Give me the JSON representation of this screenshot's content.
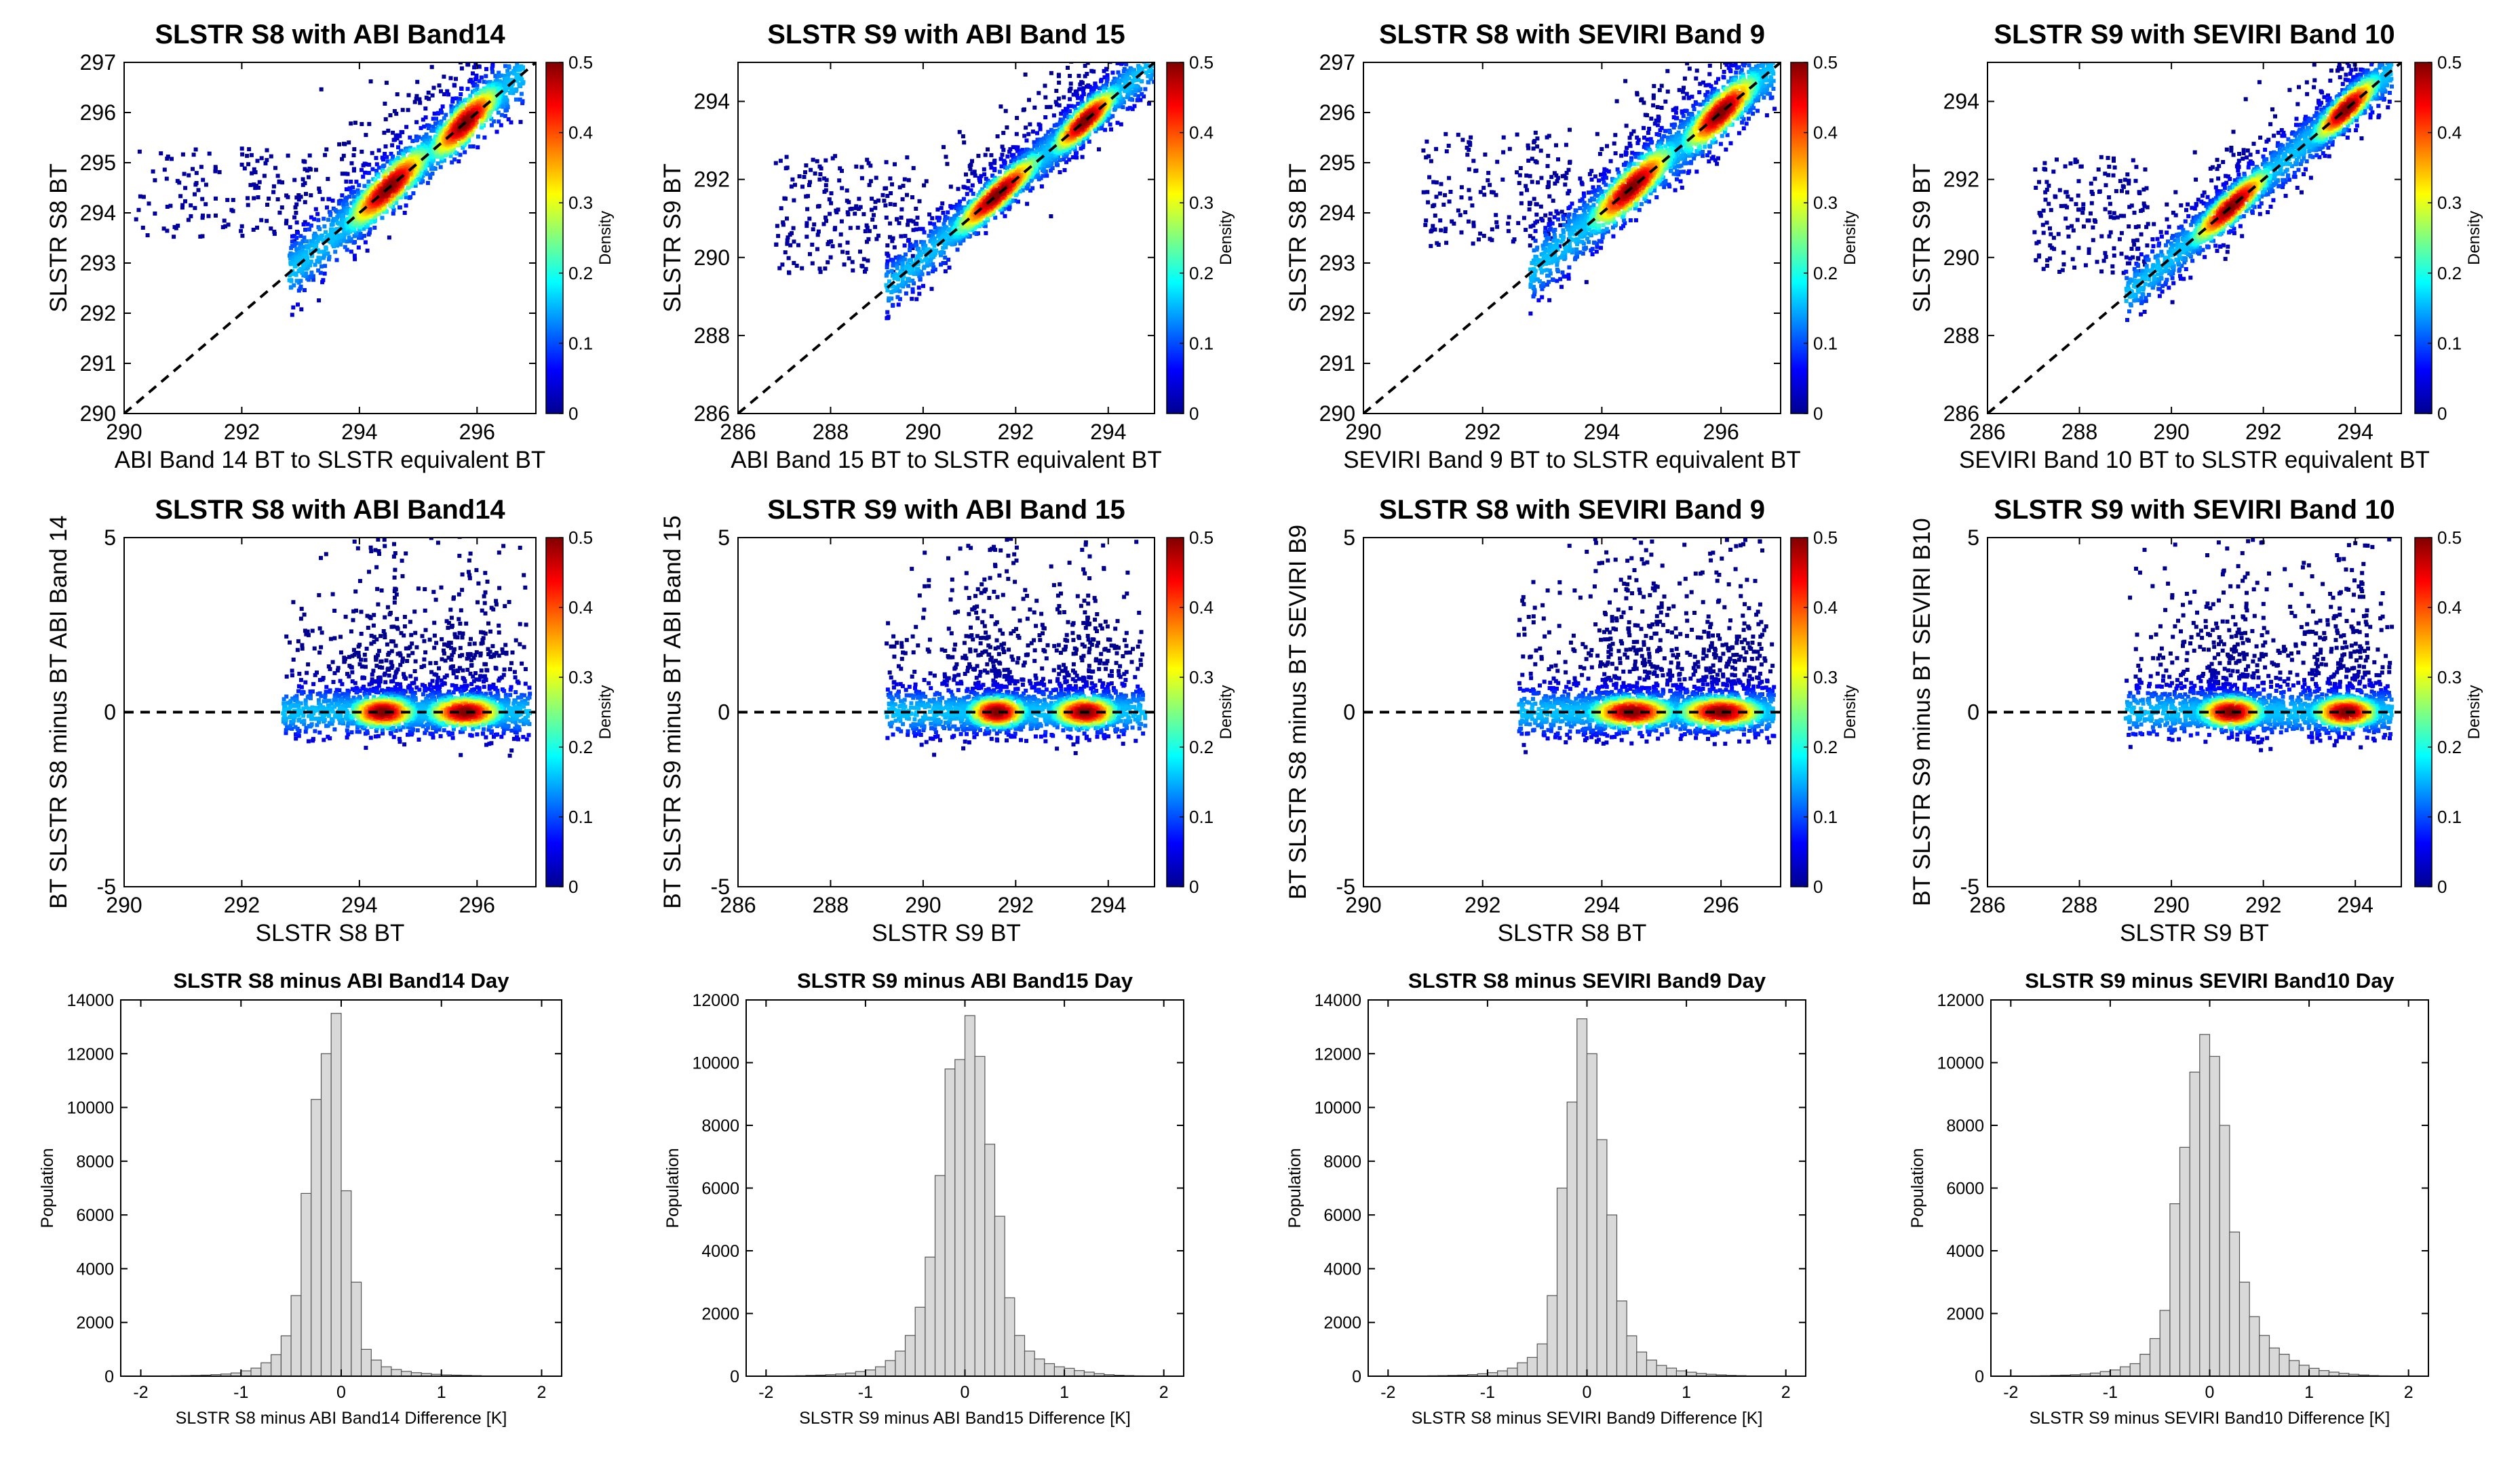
{
  "figure": {
    "colormap": [
      "#00008f",
      "#0000ff",
      "#0080ff",
      "#00ffff",
      "#80ff80",
      "#ffff00",
      "#ff8000",
      "#ff0000",
      "#800000"
    ],
    "hist_fill": "#d9d9d9",
    "hist_edge": "#555555",
    "scatter_low_color": "#00008b"
  },
  "chart_data": [
    {
      "type": "scatter",
      "row": 0,
      "col": 0,
      "title": "SLSTR S8 with ABI Band14",
      "xlabel": "ABI Band 14 BT to SLSTR equivalent BT",
      "ylabel": "SLSTR S8 BT",
      "xlim": [
        290,
        297
      ],
      "ylim": [
        290,
        297
      ],
      "xticks": [
        290,
        292,
        294,
        296
      ],
      "yticks": [
        290,
        291,
        292,
        293,
        294,
        295,
        296,
        297
      ],
      "reference_line": "1:1",
      "colorbar": {
        "label": "Density",
        "range": [
          0,
          0.5
        ],
        "ticks": [
          0,
          0.1,
          0.2,
          0.3,
          0.4,
          0.5
        ]
      },
      "point_cloud": {
        "x_range": [
          292.8,
          296.8
        ],
        "density_peaks": [
          [
            294.5,
            294.5
          ],
          [
            295.8,
            295.9
          ]
        ],
        "outliers_x": [
          290,
          293
        ],
        "outliers_y": [
          293.3,
          295.3
        ]
      }
    },
    {
      "type": "scatter",
      "row": 0,
      "col": 1,
      "title": "SLSTR S9 with ABI Band 15",
      "xlabel": "ABI Band 15 BT to SLSTR equivalent BT",
      "ylabel": "SLSTR S9 BT",
      "xlim": [
        286,
        295
      ],
      "ylim": [
        286,
        295
      ],
      "xticks": [
        286,
        288,
        290,
        292,
        294
      ],
      "yticks": [
        286,
        288,
        290,
        292,
        294
      ],
      "reference_line": "1:1",
      "colorbar": {
        "label": "Density",
        "range": [
          0,
          0.5
        ],
        "ticks": [
          0,
          0.1,
          0.2,
          0.3,
          0.4,
          0.5
        ]
      },
      "point_cloud": {
        "x_range": [
          289.2,
          295
        ],
        "density_peaks": [
          [
            291.6,
            291.6
          ],
          [
            293.5,
            293.5
          ]
        ],
        "outliers_x": [
          286,
          289.5
        ],
        "outliers_y": [
          289.5,
          292.5
        ]
      }
    },
    {
      "type": "scatter",
      "row": 0,
      "col": 2,
      "title": "SLSTR S8 with SEVIRI Band 9",
      "xlabel": "SEVIRI Band 9 BT to SLSTR equivalent BT",
      "ylabel": "SLSTR S8 BT",
      "xlim": [
        290,
        297
      ],
      "ylim": [
        290,
        297
      ],
      "xticks": [
        290,
        292,
        294,
        296
      ],
      "yticks": [
        290,
        291,
        292,
        293,
        294,
        295,
        296,
        297
      ],
      "reference_line": "1:1",
      "colorbar": {
        "label": "Density",
        "range": [
          0,
          0.5
        ],
        "ticks": [
          0,
          0.1,
          0.2,
          0.3,
          0.4,
          0.5
        ]
      },
      "point_cloud": {
        "x_range": [
          292.8,
          296.9
        ],
        "density_peaks": [
          [
            294.5,
            294.5
          ],
          [
            296,
            296
          ]
        ],
        "outliers_x": [
          291,
          293.5
        ],
        "outliers_y": [
          293.3,
          295.6
        ]
      }
    },
    {
      "type": "scatter",
      "row": 0,
      "col": 3,
      "title": "SLSTR S9 with SEVIRI Band 10",
      "xlabel": "SEVIRI Band 10 BT to SLSTR equivalent BT",
      "ylabel": "SLSTR S9 BT",
      "xlim": [
        286,
        295
      ],
      "ylim": [
        286,
        295
      ],
      "xticks": [
        286,
        288,
        290,
        292,
        294
      ],
      "yticks": [
        286,
        288,
        290,
        292,
        294
      ],
      "reference_line": "1:1",
      "colorbar": {
        "label": "Density",
        "range": [
          0,
          0.5
        ],
        "ticks": [
          0,
          0.1,
          0.2,
          0.3,
          0.4,
          0.5
        ]
      },
      "point_cloud": {
        "x_range": [
          289,
          294.8
        ],
        "density_peaks": [
          [
            291.3,
            291.4
          ],
          [
            293.8,
            293.8
          ]
        ],
        "outliers_x": [
          287,
          289.5
        ],
        "outliers_y": [
          289.5,
          292.5
        ]
      }
    },
    {
      "type": "scatter",
      "row": 1,
      "col": 0,
      "title": "SLSTR S8 with ABI Band14",
      "xlabel": "SLSTR S8 BT",
      "ylabel": "BT SLSTR S8 minus BT ABI Band 14",
      "xlim": [
        290,
        297
      ],
      "ylim": [
        -5,
        5
      ],
      "xticks": [
        290,
        292,
        294,
        296
      ],
      "yticks": [
        -5,
        0,
        5
      ],
      "reference_line": "y=0",
      "colorbar": {
        "label": "Density",
        "range": [
          0,
          0.5
        ],
        "ticks": [
          0,
          0.1,
          0.2,
          0.3,
          0.4,
          0.5
        ]
      },
      "point_cloud": {
        "x_range": [
          292.7,
          296.9
        ],
        "density_peaks": [
          [
            294.4,
            0.1
          ],
          [
            295.8,
            -0.1
          ]
        ],
        "spread_y": [
          -1.3,
          5
        ]
      }
    },
    {
      "type": "scatter",
      "row": 1,
      "col": 1,
      "title": "SLSTR S9 with ABI Band 15",
      "xlabel": "SLSTR S9 BT",
      "ylabel": "BT SLSTR S9 minus BT ABI Band 15",
      "xlim": [
        286,
        295
      ],
      "ylim": [
        -5,
        5
      ],
      "xticks": [
        286,
        288,
        290,
        292,
        294
      ],
      "yticks": [
        -5,
        0,
        5
      ],
      "reference_line": "y=0",
      "colorbar": {
        "label": "Density",
        "range": [
          0,
          0.5
        ],
        "ticks": [
          0,
          0.1,
          0.2,
          0.3,
          0.4,
          0.5
        ]
      },
      "point_cloud": {
        "x_range": [
          289.2,
          294.8
        ],
        "density_peaks": [
          [
            291.6,
            0.1
          ],
          [
            293.5,
            0
          ]
        ],
        "spread_y": [
          -1.8,
          5
        ]
      }
    },
    {
      "type": "scatter",
      "row": 1,
      "col": 2,
      "title": "SLSTR S8 with SEVIRI Band 9",
      "xlabel": "SLSTR S8 BT",
      "ylabel": "BT SLSTR S8 minus BT SEVIRI B9",
      "xlim": [
        290,
        297
      ],
      "ylim": [
        -5,
        5
      ],
      "xticks": [
        290,
        292,
        294,
        296
      ],
      "yticks": [
        -5,
        0,
        5
      ],
      "reference_line": "y=0",
      "colorbar": {
        "label": "Density",
        "range": [
          0,
          0.5
        ],
        "ticks": [
          0,
          0.1,
          0.2,
          0.3,
          0.4,
          0.5
        ]
      },
      "point_cloud": {
        "x_range": [
          292.6,
          296.9
        ],
        "density_peaks": [
          [
            294.5,
            0.1
          ],
          [
            296,
            0
          ]
        ],
        "spread_y": [
          -1.5,
          5
        ]
      }
    },
    {
      "type": "scatter",
      "row": 1,
      "col": 3,
      "title": "SLSTR S9 with SEVIRI Band 10",
      "xlabel": "SLSTR S9 BT",
      "ylabel": "BT SLSTR S9 minus BT SEVIRI B10",
      "xlim": [
        286,
        295
      ],
      "ylim": [
        -5,
        5
      ],
      "xticks": [
        286,
        288,
        290,
        292,
        294
      ],
      "yticks": [
        -5,
        0,
        5
      ],
      "reference_line": "y=0",
      "colorbar": {
        "label": "Density",
        "range": [
          0,
          0.5
        ],
        "ticks": [
          0,
          0.1,
          0.2,
          0.3,
          0.4,
          0.5
        ]
      },
      "point_cloud": {
        "x_range": [
          289,
          294.8
        ],
        "density_peaks": [
          [
            291.3,
            0.1
          ],
          [
            293.8,
            0.1
          ]
        ],
        "spread_y": [
          -1.5,
          5
        ]
      }
    },
    {
      "type": "bar",
      "subtype": "histogram",
      "row": 2,
      "col": 0,
      "title": "SLSTR S8 minus ABI Band14 Day",
      "xlabel": "SLSTR S8 minus ABI Band14 Difference [K]",
      "ylabel": "Population",
      "xlim": [
        -2.2,
        2.2
      ],
      "ylim": [
        0,
        14000
      ],
      "xticks": [
        -2,
        -1,
        0,
        1,
        2
      ],
      "yticks": [
        0,
        2000,
        4000,
        6000,
        8000,
        10000,
        12000,
        14000
      ],
      "bin_start": -2.1,
      "bin_width": 0.1,
      "values": [
        0,
        0,
        5,
        10,
        15,
        20,
        30,
        40,
        60,
        80,
        120,
        200,
        300,
        500,
        800,
        1500,
        3000,
        6800,
        10300,
        12000,
        13500,
        6900,
        3500,
        1000,
        600,
        350,
        250,
        180,
        130,
        100,
        70,
        50,
        40,
        30,
        20,
        10,
        10,
        5,
        5,
        0,
        0,
        0
      ]
    },
    {
      "type": "bar",
      "subtype": "histogram",
      "row": 2,
      "col": 1,
      "title": "SLSTR S9 minus ABI Band15 Day",
      "xlabel": "SLSTR S9 minus ABI Band15 Difference [K]",
      "ylabel": "Population",
      "xlim": [
        -2.2,
        2.2
      ],
      "ylim": [
        0,
        12000
      ],
      "xticks": [
        -2,
        -1,
        0,
        1,
        2
      ],
      "yticks": [
        0,
        2000,
        4000,
        6000,
        8000,
        10000,
        12000
      ],
      "bin_start": -2.1,
      "bin_width": 0.1,
      "values": [
        0,
        0,
        5,
        10,
        15,
        25,
        35,
        50,
        70,
        100,
        150,
        200,
        300,
        500,
        800,
        1300,
        2200,
        3800,
        6400,
        9800,
        10100,
        11500,
        10200,
        7400,
        5100,
        2500,
        1300,
        800,
        550,
        400,
        300,
        250,
        180,
        130,
        80,
        50,
        30,
        20,
        10,
        5,
        0,
        0
      ]
    },
    {
      "type": "bar",
      "subtype": "histogram",
      "row": 2,
      "col": 2,
      "title": "SLSTR S8 minus SEVIRI Band9 Day",
      "xlabel": "SLSTR S8 minus SEVIRI Band9 Difference [K]",
      "ylabel": "Population",
      "xlim": [
        -2.2,
        2.2
      ],
      "ylim": [
        0,
        14000
      ],
      "xticks": [
        -2,
        -1,
        0,
        1,
        2
      ],
      "yticks": [
        0,
        2000,
        4000,
        6000,
        8000,
        10000,
        12000,
        14000
      ],
      "bin_start": -2.1,
      "bin_width": 0.1,
      "values": [
        0,
        0,
        0,
        5,
        10,
        15,
        20,
        30,
        40,
        60,
        90,
        130,
        200,
        300,
        500,
        700,
        1200,
        3000,
        7000,
        10200,
        13300,
        12000,
        8800,
        6000,
        2800,
        1500,
        900,
        600,
        400,
        300,
        200,
        150,
        100,
        70,
        50,
        30,
        20,
        10,
        5,
        0,
        0,
        0
      ]
    },
    {
      "type": "bar",
      "subtype": "histogram",
      "row": 2,
      "col": 3,
      "title": "SLSTR S9 minus SEVIRI Band10 Day",
      "xlabel": "SLSTR S9 minus SEVIRI Band10 Difference [K]",
      "ylabel": "Population",
      "xlim": [
        -2.2,
        2.2
      ],
      "ylim": [
        0,
        12000
      ],
      "xticks": [
        -2,
        -1,
        0,
        1,
        2
      ],
      "yticks": [
        0,
        2000,
        4000,
        6000,
        8000,
        10000,
        12000
      ],
      "bin_start": -2.1,
      "bin_width": 0.1,
      "values": [
        0,
        0,
        5,
        10,
        15,
        25,
        35,
        50,
        70,
        100,
        150,
        200,
        300,
        400,
        700,
        1200,
        2100,
        5500,
        7300,
        9700,
        10900,
        10200,
        8000,
        4600,
        3000,
        1900,
        1300,
        900,
        700,
        500,
        350,
        250,
        180,
        130,
        90,
        60,
        40,
        20,
        10,
        5,
        0,
        0
      ]
    }
  ]
}
